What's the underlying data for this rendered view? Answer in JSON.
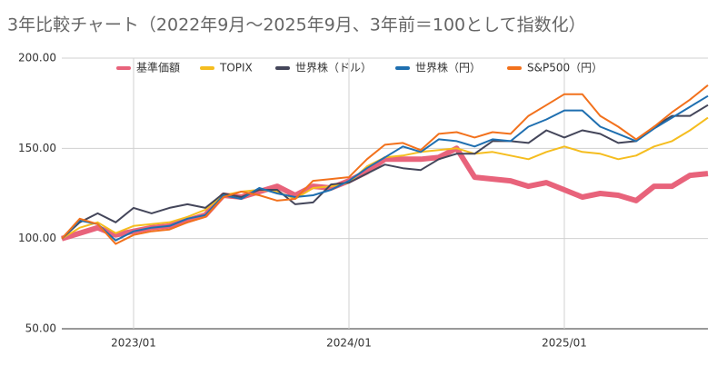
{
  "chart_data": {
    "type": "line",
    "title": "3年比較チャート（2022年9月〜2025年9月、3年前＝100として指数化）",
    "categories": [
      null,
      null,
      null,
      null,
      "2023/01",
      null,
      null,
      null,
      null,
      null,
      null,
      null,
      null,
      null,
      null,
      null,
      "2024/01",
      null,
      null,
      null,
      null,
      null,
      null,
      null,
      null,
      null,
      null,
      null,
      "2025/01",
      null,
      null,
      null,
      null,
      null,
      null,
      null,
      null
    ],
    "series": [
      {
        "name": "基準価額",
        "color": "#e8637b",
        "values": [
          100,
          103,
          106,
          102,
          104,
          106,
          107,
          110,
          113,
          124,
          123,
          126,
          129,
          124,
          129,
          128,
          132,
          137,
          144,
          144,
          144,
          145,
          150,
          134,
          133,
          132,
          129,
          131,
          127,
          123,
          125,
          124,
          121,
          129,
          129,
          135,
          136
        ]
      },
      {
        "name": "TOPIX",
        "color": "#f5bd1f",
        "values": [
          100,
          106,
          109,
          103,
          107,
          108,
          109,
          112,
          116,
          124,
          126,
          127,
          126,
          122,
          128,
          129,
          131,
          140,
          145,
          146,
          148,
          149,
          150,
          147,
          148,
          146,
          144,
          148,
          151,
          148,
          147,
          144,
          146,
          151,
          154,
          160,
          167
        ]
      },
      {
        "name": "世界株（ドル）",
        "color": "#44465a",
        "values": [
          100,
          109,
          114,
          109,
          117,
          114,
          117,
          119,
          117,
          125,
          123,
          127,
          127,
          119,
          120,
          130,
          131,
          136,
          141,
          139,
          138,
          144,
          147,
          147,
          154,
          154,
          153,
          160,
          156,
          160,
          158,
          153,
          154,
          162,
          168,
          168,
          174
        ]
      },
      {
        "name": "世界株（円）",
        "color": "#1f6fb0",
        "values": [
          100,
          110,
          108,
          99,
          104,
          106,
          107,
          111,
          113,
          124,
          122,
          128,
          125,
          123,
          124,
          127,
          132,
          139,
          145,
          151,
          148,
          155,
          154,
          151,
          155,
          154,
          162,
          166,
          171,
          171,
          162,
          158,
          154,
          161,
          167,
          173,
          179
        ]
      },
      {
        "name": "S&P500（円）",
        "color": "#f2711c",
        "values": [
          100,
          111,
          108,
          97,
          102,
          104,
          105,
          109,
          112,
          123,
          126,
          124,
          121,
          122,
          132,
          133,
          134,
          144,
          152,
          153,
          149,
          158,
          159,
          156,
          159,
          158,
          168,
          174,
          180,
          180,
          168,
          162,
          155,
          162,
          170,
          177,
          185
        ]
      }
    ],
    "ylim": [
      50,
      200
    ],
    "yticks": [
      {
        "value": 50,
        "label": "50.00"
      },
      {
        "value": 100,
        "label": "100.00"
      },
      {
        "value": 150,
        "label": "150.00"
      },
      {
        "value": 200,
        "label": "200.00"
      }
    ],
    "grid": true,
    "legend": "top"
  }
}
